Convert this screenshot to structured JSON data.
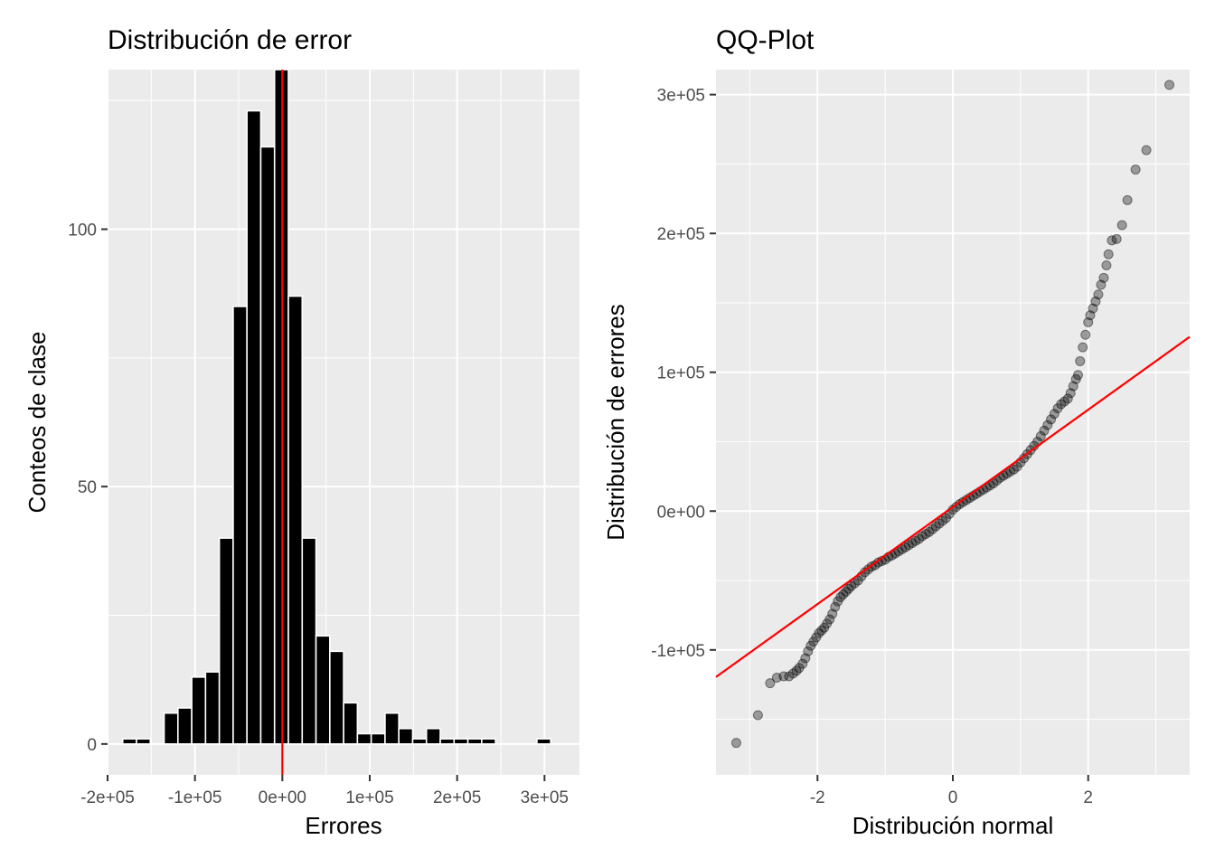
{
  "chart_data": [
    {
      "type": "bar",
      "title": "Distribución de error",
      "xlabel": "Errores",
      "ylabel": "Conteos de clase",
      "xlim": [
        -200000,
        340000
      ],
      "ylim": [
        -6,
        131
      ],
      "grid": true,
      "x_ticks": [
        -200000,
        -100000,
        0,
        100000,
        200000,
        300000
      ],
      "x_tick_labels": [
        "-2e+05",
        "-1e+05",
        "0e+00",
        "1e+05",
        "2e+05",
        "3e+05"
      ],
      "y_ticks": [
        0,
        50,
        100
      ],
      "y_tick_labels": [
        "0",
        "50",
        "100"
      ],
      "bin_width": 15800,
      "bin_centers": [
        -174800,
        -159000,
        -127400,
        -111600,
        -95800,
        -80000,
        -64200,
        -48400,
        -32600,
        -16800,
        -1000,
        14800,
        30600,
        46400,
        62200,
        78000,
        93800,
        109600,
        125400,
        141200,
        157000,
        172800,
        188600,
        204400,
        220200,
        236000,
        251800,
        267600,
        283400,
        299200,
        315000
      ],
      "counts": [
        1,
        1,
        6,
        7,
        13,
        14,
        40,
        85,
        123,
        116,
        131,
        87,
        40,
        21,
        18,
        8,
        2,
        2,
        6,
        3,
        1,
        3,
        1,
        1,
        1,
        1,
        0,
        0,
        0,
        1,
        0
      ],
      "vline_x": 0,
      "colors": {
        "bar_fill": "#000000",
        "bar_stroke": "#ffffff",
        "panel": "#ebebeb",
        "grid": "#ffffff",
        "vline": "#ff0000"
      }
    },
    {
      "type": "scatter",
      "title": "QQ-Plot",
      "xlabel": "Distribución normal",
      "ylabel": "Distribución de errores",
      "xlim": [
        -3.5,
        3.5
      ],
      "ylim": [
        -190000,
        318000
      ],
      "grid": true,
      "x_ticks": [
        -2,
        0,
        2
      ],
      "x_tick_labels": [
        "-2",
        "0",
        "2"
      ],
      "y_ticks": [
        -100000,
        0,
        100000,
        200000,
        300000
      ],
      "y_tick_labels": [
        "-1e+05",
        "0e+00",
        "1e+05",
        "2e+05",
        "3e+05"
      ],
      "reference_line": {
        "intercept": 3000,
        "slope": 35000
      },
      "points": [
        [
          -3.2,
          -167000
        ],
        [
          -2.88,
          -147000
        ],
        [
          -2.7,
          -124000
        ],
        [
          -2.6,
          -120000
        ],
        [
          -2.5,
          -119000
        ],
        [
          -2.42,
          -119000
        ],
        [
          -2.36,
          -117000
        ],
        [
          -2.31,
          -115000
        ],
        [
          -2.27,
          -113000
        ],
        [
          -2.22,
          -110000
        ],
        [
          -2.18,
          -106000
        ],
        [
          -2.14,
          -101000
        ],
        [
          -2.1,
          -97000
        ],
        [
          -2.06,
          -94000
        ],
        [
          -2.02,
          -91000
        ],
        [
          -1.98,
          -88000
        ],
        [
          -1.94,
          -86000
        ],
        [
          -1.9,
          -84000
        ],
        [
          -1.86,
          -81000
        ],
        [
          -1.82,
          -78000
        ],
        [
          -1.78,
          -74000
        ],
        [
          -1.74,
          -69000
        ],
        [
          -1.7,
          -65000
        ],
        [
          -1.66,
          -62000
        ],
        [
          -1.62,
          -60000
        ],
        [
          -1.58,
          -58000
        ],
        [
          -1.54,
          -56000
        ],
        [
          -1.5,
          -54000
        ],
        [
          -1.45,
          -52000
        ],
        [
          -1.4,
          -50000
        ],
        [
          -1.35,
          -47000
        ],
        [
          -1.3,
          -44000
        ],
        [
          -1.25,
          -42000
        ],
        [
          -1.2,
          -40000
        ],
        [
          -1.15,
          -39000
        ],
        [
          -1.1,
          -37000
        ],
        [
          -1.05,
          -36000
        ],
        [
          -1,
          -35000
        ],
        [
          -0.95,
          -33000
        ],
        [
          -0.9,
          -32000
        ],
        [
          -0.85,
          -30500
        ],
        [
          -0.8,
          -29000
        ],
        [
          -0.75,
          -27500
        ],
        [
          -0.7,
          -26000
        ],
        [
          -0.65,
          -24500
        ],
        [
          -0.6,
          -23000
        ],
        [
          -0.55,
          -21500
        ],
        [
          -0.5,
          -20000
        ],
        [
          -0.45,
          -18000
        ],
        [
          -0.4,
          -16500
        ],
        [
          -0.35,
          -15000
        ],
        [
          -0.3,
          -13000
        ],
        [
          -0.25,
          -11000
        ],
        [
          -0.2,
          -9000
        ],
        [
          -0.15,
          -7000
        ],
        [
          -0.1,
          -5000
        ],
        [
          -0.05,
          -2000
        ],
        [
          0,
          1000
        ],
        [
          0.05,
          3000
        ],
        [
          0.1,
          5000
        ],
        [
          0.15,
          6500
        ],
        [
          0.2,
          8000
        ],
        [
          0.25,
          9500
        ],
        [
          0.3,
          11000
        ],
        [
          0.35,
          12500
        ],
        [
          0.4,
          14000
        ],
        [
          0.45,
          15500
        ],
        [
          0.5,
          17000
        ],
        [
          0.55,
          18500
        ],
        [
          0.6,
          20000
        ],
        [
          0.65,
          22000
        ],
        [
          0.7,
          24000
        ],
        [
          0.75,
          25500
        ],
        [
          0.8,
          27000
        ],
        [
          0.85,
          28500
        ],
        [
          0.9,
          30000
        ],
        [
          0.95,
          32000
        ],
        [
          1,
          35000
        ],
        [
          1.05,
          38000
        ],
        [
          1.1,
          41000
        ],
        [
          1.15,
          44000
        ],
        [
          1.2,
          47000
        ],
        [
          1.25,
          50000
        ],
        [
          1.3,
          54000
        ],
        [
          1.35,
          58000
        ],
        [
          1.4,
          62000
        ],
        [
          1.45,
          66000
        ],
        [
          1.5,
          70000
        ],
        [
          1.55,
          74000
        ],
        [
          1.6,
          77000
        ],
        [
          1.65,
          79000
        ],
        [
          1.7,
          81000
        ],
        [
          1.74,
          85000
        ],
        [
          1.78,
          90000
        ],
        [
          1.82,
          95000
        ],
        [
          1.85,
          98000
        ],
        [
          1.88,
          108000
        ],
        [
          1.92,
          118000
        ],
        [
          1.96,
          127000
        ],
        [
          2.0,
          136000
        ],
        [
          2.03,
          141000
        ],
        [
          2.07,
          146000
        ],
        [
          2.11,
          151000
        ],
        [
          2.15,
          156000
        ],
        [
          2.19,
          163000
        ],
        [
          2.23,
          168000
        ],
        [
          2.27,
          177000
        ],
        [
          2.3,
          185000
        ],
        [
          2.35,
          195000
        ],
        [
          2.42,
          196000
        ],
        [
          2.5,
          206000
        ],
        [
          2.58,
          224000
        ],
        [
          2.7,
          246000
        ],
        [
          2.86,
          260000
        ],
        [
          3.2,
          307000
        ]
      ],
      "colors": {
        "point": "#000000",
        "point_alpha": 0.35,
        "panel": "#ebebeb",
        "grid": "#ffffff",
        "line": "#ff0000"
      }
    }
  ]
}
